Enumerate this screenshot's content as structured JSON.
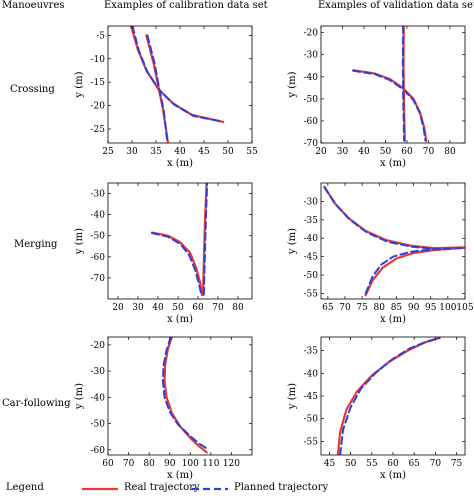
{
  "headers": {
    "manoeuvres": "Manoeuvres",
    "calibration": "Examples of calibration data set",
    "validation": "Examples of validation data set"
  },
  "rows": [
    "Crossing",
    "Merging",
    "Car-following"
  ],
  "legend": {
    "title": "Legend",
    "real": "Real trajectory",
    "planned": "Planned trajectory",
    "real_color": "#e8383a",
    "planned_color": "#2f3fd6"
  },
  "chart_data": [
    {
      "type": "line",
      "panel": "crossing-calibration",
      "xlabel": "x (m)",
      "ylabel": "y (m)",
      "xlim": [
        25,
        55
      ],
      "ylim": [
        -28,
        -3
      ],
      "xticks": [
        25,
        30,
        35,
        40,
        45,
        50,
        55
      ],
      "yticks": [
        -5,
        -10,
        -15,
        -20,
        -25
      ],
      "series": [
        {
          "name": "Real trajectory",
          "x": [
            29.8,
            31.2,
            33.0,
            35.5,
            38.5,
            42.5,
            49.0
          ],
          "y": [
            -3,
            -8,
            -12.5,
            -16.5,
            -19.5,
            -22.0,
            -23.5
          ]
        },
        {
          "name": "Planned trajectory",
          "x": [
            30.1,
            31.4,
            33.2,
            35.8,
            38.8,
            42.8,
            48.8
          ],
          "y": [
            -3,
            -8.2,
            -12.8,
            -16.8,
            -19.8,
            -22.2,
            -23.4
          ]
        },
        {
          "name": "Real trajectory",
          "x": [
            33.0,
            34.5,
            35.5,
            36.5,
            37.5
          ],
          "y": [
            -5,
            -11,
            -16,
            -21,
            -28
          ]
        },
        {
          "name": "Planned trajectory",
          "x": [
            33.2,
            34.7,
            35.6,
            36.6,
            37.4
          ],
          "y": [
            -5,
            -11,
            -16,
            -21,
            -28
          ]
        }
      ]
    },
    {
      "type": "line",
      "panel": "crossing-validation",
      "xlabel": "x (m)",
      "ylabel": "y (m)",
      "xlim": [
        20,
        87
      ],
      "ylim": [
        -70,
        -17
      ],
      "xticks": [
        20,
        30,
        40,
        50,
        60,
        70,
        80
      ],
      "yticks": [
        -20,
        -30,
        -40,
        -50,
        -60,
        -70
      ],
      "series": [
        {
          "name": "Real trajectory",
          "x": [
            35,
            45,
            52,
            58,
            63,
            66,
            68,
            69
          ],
          "y": [
            -37,
            -38.5,
            -41,
            -45,
            -50,
            -56,
            -63,
            -69
          ]
        },
        {
          "name": "Planned trajectory",
          "x": [
            35,
            45,
            52,
            58,
            63,
            66,
            67.7,
            68.6
          ],
          "y": [
            -37.3,
            -38.8,
            -41.5,
            -45.5,
            -50.5,
            -56.5,
            -63,
            -69
          ]
        },
        {
          "name": "Real trajectory",
          "x": [
            58.5,
            58.4,
            58.6,
            59.0
          ],
          "y": [
            -17,
            -35,
            -52,
            -69
          ]
        },
        {
          "name": "Planned trajectory",
          "x": [
            58.2,
            58.1,
            58.3,
            58.7
          ],
          "y": [
            -17,
            -35,
            -52,
            -69
          ]
        }
      ]
    },
    {
      "type": "line",
      "panel": "merging-calibration",
      "xlabel": "x (m)",
      "ylabel": "y (m)",
      "xlim": [
        15,
        87
      ],
      "ylim": [
        -80,
        -25
      ],
      "xticks": [
        20,
        30,
        40,
        50,
        60,
        70,
        80
      ],
      "yticks": [
        -30,
        -40,
        -50,
        -60,
        -70
      ],
      "series": [
        {
          "name": "Real trajectory",
          "x": [
            37,
            45,
            51,
            56,
            59,
            61,
            62
          ],
          "y": [
            -48.5,
            -50,
            -53,
            -58,
            -65,
            -72,
            -78
          ]
        },
        {
          "name": "Planned trajectory",
          "x": [
            37,
            45,
            51,
            55.5,
            58.5,
            60.5,
            61.7
          ],
          "y": [
            -48.7,
            -50.5,
            -53.8,
            -59,
            -66,
            -73,
            -78
          ]
        },
        {
          "name": "Real trajectory",
          "x": [
            62.5,
            63.0,
            63.6,
            64.3
          ],
          "y": [
            -78,
            -60,
            -40,
            -25
          ]
        },
        {
          "name": "Planned trajectory",
          "x": [
            62.9,
            63.4,
            64.0,
            64.6
          ],
          "y": [
            -78,
            -60,
            -40,
            -25
          ]
        }
      ]
    },
    {
      "type": "line",
      "panel": "merging-validation",
      "xlabel": "x (m)",
      "ylabel": "y (m)",
      "xlim": [
        63,
        105
      ],
      "ylim": [
        -56.5,
        -25
      ],
      "xticks": [
        65,
        70,
        75,
        80,
        85,
        90,
        95,
        100,
        105
      ],
      "yticks": [
        -30,
        -35,
        -40,
        -45,
        -50,
        -55
      ],
      "series": [
        {
          "name": "Real trajectory",
          "x": [
            64,
            67,
            71,
            76,
            82,
            89,
            96,
            105
          ],
          "y": [
            -26,
            -30.5,
            -34.5,
            -38,
            -40.5,
            -42,
            -42.7,
            -42.5
          ]
        },
        {
          "name": "Planned trajectory",
          "x": [
            64,
            67.5,
            71.5,
            76.5,
            82.5,
            89.5,
            96.5,
            105
          ],
          "y": [
            -26.2,
            -31,
            -35,
            -38.5,
            -41,
            -42.3,
            -42.9,
            -42.6
          ]
        },
        {
          "name": "Real trajectory",
          "x": [
            76,
            78,
            81,
            85,
            90,
            96,
            105
          ],
          "y": [
            -55.5,
            -51.5,
            -48,
            -45.5,
            -44,
            -43.2,
            -42.6
          ]
        },
        {
          "name": "Planned trajectory",
          "x": [
            76,
            78,
            80.5,
            84,
            89,
            95.5,
            105
          ],
          "y": [
            -55,
            -50.5,
            -47.2,
            -45,
            -43.7,
            -43,
            -42.6
          ]
        }
      ]
    },
    {
      "type": "line",
      "panel": "car-following-calibration",
      "xlabel": "x (m)",
      "ylabel": "y (m)",
      "xlim": [
        60,
        130
      ],
      "ylim": [
        -62,
        -17
      ],
      "xticks": [
        60,
        70,
        80,
        90,
        100,
        110,
        120
      ],
      "yticks": [
        -20,
        -30,
        -40,
        -50,
        -60
      ],
      "series": [
        {
          "name": "Real trajectory",
          "x": [
            91,
            89,
            87.7,
            87.5,
            88.5,
            91,
            95,
            100,
            104,
            108
          ],
          "y": [
            -17,
            -22,
            -28,
            -34,
            -40,
            -46,
            -51,
            -55.5,
            -58.5,
            -61
          ]
        },
        {
          "name": "Planned trajectory",
          "x": [
            90.5,
            88.5,
            87.0,
            86.7,
            87.5,
            90,
            94,
            99.5,
            104,
            109
          ],
          "y": [
            -17,
            -22,
            -28,
            -34,
            -40,
            -45.5,
            -50.3,
            -54.5,
            -57.5,
            -60
          ]
        }
      ]
    },
    {
      "type": "line",
      "panel": "car-following-validation",
      "xlabel": "x (m)",
      "ylabel": "y (m)",
      "xlim": [
        43,
        77
      ],
      "ylim": [
        -58,
        -32
      ],
      "xticks": [
        45,
        50,
        55,
        60,
        65,
        70,
        75
      ],
      "yticks": [
        -35,
        -40,
        -45,
        -50,
        -55
      ],
      "series": [
        {
          "name": "Real trajectory",
          "x": [
            47,
            47.5,
            49,
            51.5,
            55,
            59,
            63.5,
            67.5,
            71
          ],
          "y": [
            -58,
            -53,
            -48,
            -44,
            -40.5,
            -37.5,
            -35,
            -33.2,
            -32.2
          ]
        },
        {
          "name": "Planned trajectory",
          "x": [
            47.5,
            48.2,
            50,
            52.5,
            56,
            60,
            64,
            68,
            71
          ],
          "y": [
            -58,
            -52.5,
            -47.5,
            -43.3,
            -39.8,
            -36.8,
            -34.5,
            -33,
            -32.2
          ]
        }
      ]
    }
  ]
}
